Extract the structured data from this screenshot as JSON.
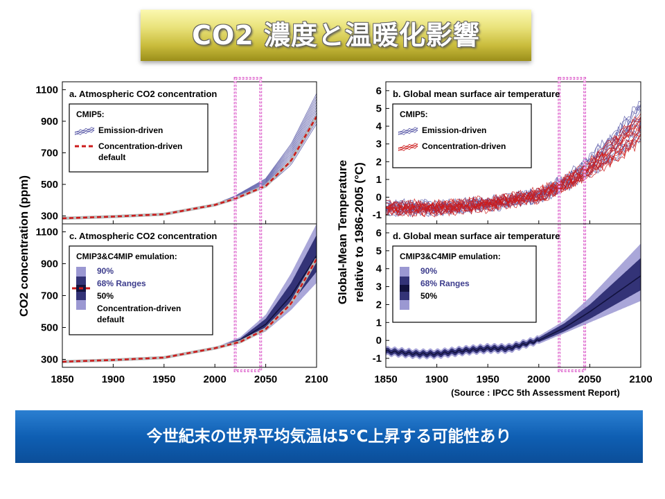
{
  "title": "CO2 濃度と温暖化影響",
  "footer_message": "今世紀末の世界平均気温は5℃上昇する可能性あり",
  "source": "(Source : IPCC 5th Assessment Report)",
  "left_ylabel": "CO2 concentration (ppm)",
  "right_ylabel_line1": "Global-Mean Temperature",
  "right_ylabel_line2": "relative to 1986-2005 (°C)",
  "colors": {
    "emission": "#5a5aa8",
    "concentration": "#cc1b1b",
    "band90": "#9b98d2",
    "band68": "#333377",
    "band50": "#12123e",
    "highlight": "#e070d0"
  },
  "highlight_period": [
    2020,
    2045
  ],
  "chart_data": [
    {
      "id": "a",
      "type": "line",
      "title": "a. Atmospheric CO2 concentration",
      "xlim": [
        1850,
        2100
      ],
      "ylim": [
        250,
        1150
      ],
      "x_ticks": [
        1850,
        1900,
        1950,
        2000,
        2050,
        2100
      ],
      "y_ticks": [
        300,
        500,
        700,
        900,
        1100
      ],
      "legend_title": "CMIP5:",
      "series": [
        {
          "name": "Emission-driven",
          "x": [
            1850,
            1900,
            1950,
            2000,
            2020,
            2050,
            2075,
            2100
          ],
          "y": [
            285,
            296,
            311,
            370,
            415,
            510,
            690,
            980
          ],
          "spread": [
            0,
            0,
            0,
            8,
            20,
            45,
            110,
            160
          ]
        },
        {
          "name": "Concentration-driven default",
          "x": [
            1850,
            1900,
            1950,
            2000,
            2020,
            2050,
            2075,
            2100
          ],
          "y": [
            285,
            296,
            311,
            370,
            410,
            490,
            650,
            930
          ]
        }
      ]
    },
    {
      "id": "b",
      "type": "line",
      "title": "b. Global mean surface air temperature",
      "xlim": [
        1850,
        2100
      ],
      "ylim": [
        -1.5,
        6.5
      ],
      "x_ticks": [
        1850,
        1900,
        1950,
        2000,
        2050,
        2100
      ],
      "y_ticks": [
        -1,
        0,
        1,
        2,
        3,
        4,
        5,
        6
      ],
      "legend_title": "CMIP5:",
      "series": [
        {
          "name": "Emission-driven",
          "x": [
            1850,
            1900,
            1950,
            2000,
            2025,
            2050,
            2075,
            2100
          ],
          "y": [
            -0.6,
            -0.6,
            -0.4,
            0.1,
            0.8,
            1.8,
            3.0,
            4.4
          ],
          "spread": [
            0.4,
            0.4,
            0.4,
            0.4,
            0.5,
            0.8,
            1.2,
            1.7
          ]
        },
        {
          "name": "Concentration-driven",
          "x": [
            1850,
            1900,
            1950,
            2000,
            2025,
            2050,
            2075,
            2100
          ],
          "y": [
            -0.6,
            -0.6,
            -0.4,
            0.1,
            0.7,
            1.6,
            2.7,
            3.9
          ],
          "spread": [
            0.4,
            0.4,
            0.4,
            0.4,
            0.45,
            0.7,
            1.0,
            1.4
          ]
        }
      ]
    },
    {
      "id": "c",
      "type": "area",
      "title": "c. Atmospheric CO2 concentration",
      "xlim": [
        1850,
        2100
      ],
      "ylim": [
        250,
        1150
      ],
      "x_ticks": [
        1850,
        1900,
        1950,
        2000,
        2050,
        2100
      ],
      "x_tick_labels": [
        "1850",
        "1900",
        "1950",
        "2000",
        "2050",
        "2100"
      ],
      "y_ticks": [
        300,
        500,
        700,
        900,
        1100
      ],
      "legend_title": "CMIP3&C4MIP emulation:",
      "legend_items": [
        "90%",
        "68% Ranges",
        "50%",
        "Concentration-driven default"
      ],
      "x": [
        1850,
        1900,
        1950,
        2000,
        2025,
        2050,
        2075,
        2100
      ],
      "median": [
        285,
        296,
        311,
        370,
        420,
        520,
        700,
        950
      ],
      "range68": [
        [
          285,
          285
        ],
        [
          296,
          296
        ],
        [
          311,
          311
        ],
        [
          368,
          372
        ],
        [
          412,
          430
        ],
        [
          495,
          555
        ],
        [
          650,
          780
        ],
        [
          850,
          1080
        ]
      ],
      "range90": [
        [
          285,
          285
        ],
        [
          296,
          296
        ],
        [
          311,
          311
        ],
        [
          366,
          374
        ],
        [
          405,
          440
        ],
        [
          475,
          580
        ],
        [
          610,
          840
        ],
        [
          780,
          1150
        ]
      ],
      "concentration_default": [
        285,
        296,
        311,
        370,
        410,
        490,
        650,
        930
      ]
    },
    {
      "id": "d",
      "type": "area",
      "title": "d. Global mean surface air temperature",
      "xlim": [
        1850,
        2100
      ],
      "ylim": [
        -1.5,
        6.5
      ],
      "x_ticks": [
        1850,
        1900,
        1950,
        2000,
        2050,
        2100
      ],
      "x_tick_labels": [
        "1850",
        "1900",
        "1950",
        "2000",
        "2050",
        "2100"
      ],
      "y_ticks": [
        -1,
        0,
        1,
        2,
        3,
        4,
        5,
        6
      ],
      "legend_title": "CMIP3&C4MIP emulation:",
      "legend_items": [
        "90%",
        "68% Ranges",
        "50%"
      ],
      "x": [
        1850,
        1880,
        1900,
        1930,
        1950,
        1970,
        2000,
        2025,
        2050,
        2075,
        2100
      ],
      "median": [
        -0.6,
        -0.75,
        -0.75,
        -0.55,
        -0.45,
        -0.45,
        0.0,
        0.7,
        1.6,
        2.6,
        3.6
      ],
      "range68": [
        [
          -0.75,
          -0.45
        ],
        [
          -0.9,
          -0.6
        ],
        [
          -0.9,
          -0.6
        ],
        [
          -0.7,
          -0.4
        ],
        [
          -0.6,
          -0.3
        ],
        [
          -0.6,
          -0.3
        ],
        [
          -0.1,
          0.15
        ],
        [
          0.5,
          0.95
        ],
        [
          1.2,
          2.0
        ],
        [
          2.0,
          3.3
        ],
        [
          2.8,
          4.6
        ]
      ],
      "range90": [
        [
          -0.85,
          -0.35
        ],
        [
          -1.0,
          -0.5
        ],
        [
          -1.0,
          -0.5
        ],
        [
          -0.8,
          -0.3
        ],
        [
          -0.7,
          -0.2
        ],
        [
          -0.7,
          -0.2
        ],
        [
          -0.2,
          0.25
        ],
        [
          0.4,
          1.1
        ],
        [
          1.0,
          2.4
        ],
        [
          1.6,
          3.9
        ],
        [
          2.2,
          5.4
        ]
      ]
    }
  ]
}
